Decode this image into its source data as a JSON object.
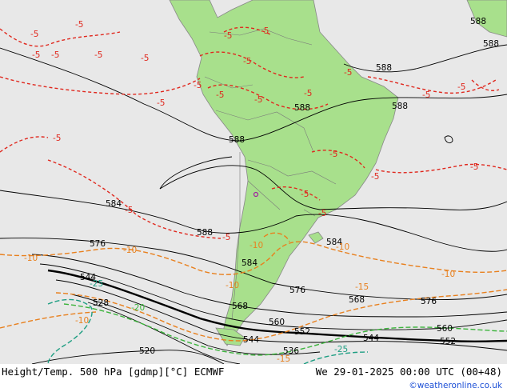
{
  "title": "Height/Temp. 500 hPa [gdmp][°C] ECMWF",
  "valid_time": "We 29-01-2025 00:00 UTC (00+48)",
  "credit": "©weatheronline.co.uk",
  "colors": {
    "ocean": "#e8e8e8",
    "land": "#a8e08c",
    "height_contour": "#000000",
    "temp_minus5": "#e0281e",
    "temp_minus10": "#e8801e",
    "temp_minus15": "#e8801e",
    "temp_minus20": "#3cb43c",
    "temp_minus25": "#1e9e82"
  },
  "height_labels": [
    "588",
    "588",
    "588",
    "588",
    "588",
    "588",
    "588",
    "584",
    "584",
    "584",
    "576",
    "576",
    "576",
    "568",
    "568",
    "560",
    "560",
    "552",
    "552",
    "544",
    "544",
    "544",
    "536",
    "528",
    "520"
  ],
  "temp_labels": {
    "minus5": [
      "-5",
      "-5",
      "-5",
      "-5",
      "-5",
      "-5",
      "-5",
      "-5",
      "-5",
      "-5",
      "-5",
      "-5",
      "-5",
      "-5",
      "-5",
      "-5",
      "-5",
      "-5",
      "-5",
      "-5",
      "-5",
      "-5",
      "-5",
      "-5",
      "-5"
    ],
    "minus10": [
      "-10",
      "-10",
      "-10",
      "-10",
      "-10",
      "-10",
      "-10"
    ],
    "minus15": [
      "-15",
      "-15"
    ],
    "minus20": [
      "-20"
    ],
    "minus25": [
      "-25",
      "-25"
    ]
  }
}
